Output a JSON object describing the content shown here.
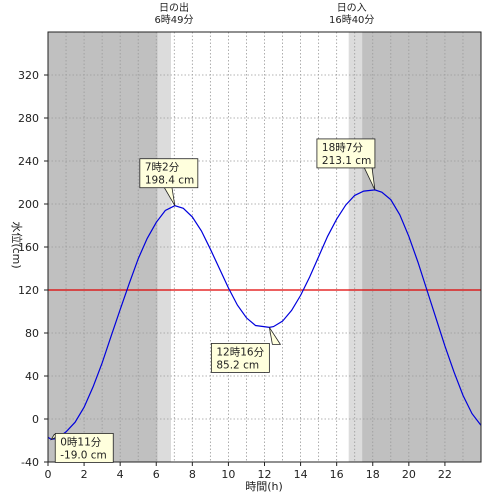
{
  "chart_data": {
    "type": "line",
    "title": "",
    "xlabel": "時間(h)",
    "ylabel": "水位(cm)",
    "xlim": [
      0,
      24
    ],
    "ylim": [
      -40,
      360
    ],
    "x_ticks": [
      0,
      2,
      4,
      6,
      8,
      10,
      12,
      14,
      16,
      18,
      20,
      22
    ],
    "y_ticks": [
      -40,
      0,
      40,
      80,
      120,
      160,
      200,
      240,
      280,
      320
    ],
    "grid": true,
    "legend": "none",
    "sun_events": [
      {
        "id": "sunrise",
        "label": "日の出",
        "time_label": "6時49分",
        "hour": 6.817
      },
      {
        "id": "sunset",
        "label": "日の入",
        "time_label": "16時40分",
        "hour": 16.667
      }
    ],
    "reference_line": {
      "value": 120,
      "color": "#e00000"
    },
    "series": [
      {
        "color": "#0000dd",
        "points": [
          [
            0.0,
            -17
          ],
          [
            0.18,
            -19
          ],
          [
            0.5,
            -18
          ],
          [
            1.0,
            -12
          ],
          [
            1.5,
            -3
          ],
          [
            2.0,
            11
          ],
          [
            2.5,
            30
          ],
          [
            3.0,
            52
          ],
          [
            3.5,
            77
          ],
          [
            4.0,
            102
          ],
          [
            4.5,
            126
          ],
          [
            5.0,
            149
          ],
          [
            5.5,
            168
          ],
          [
            6.0,
            183
          ],
          [
            6.5,
            194
          ],
          [
            7.03,
            198.4
          ],
          [
            7.5,
            196
          ],
          [
            8.0,
            188
          ],
          [
            8.5,
            175
          ],
          [
            9.0,
            158
          ],
          [
            9.5,
            140
          ],
          [
            10.0,
            122
          ],
          [
            10.5,
            106
          ],
          [
            11.0,
            94
          ],
          [
            11.5,
            87
          ],
          [
            12.27,
            85.2
          ],
          [
            12.5,
            86
          ],
          [
            13.0,
            91
          ],
          [
            13.5,
            101
          ],
          [
            14.0,
            115
          ],
          [
            14.5,
            132
          ],
          [
            15.0,
            151
          ],
          [
            15.5,
            170
          ],
          [
            16.0,
            186
          ],
          [
            16.5,
            199
          ],
          [
            17.0,
            208
          ],
          [
            17.5,
            212
          ],
          [
            18.12,
            213.1
          ],
          [
            18.5,
            211
          ],
          [
            19.0,
            204
          ],
          [
            19.5,
            190
          ],
          [
            20.0,
            170
          ],
          [
            20.5,
            146
          ],
          [
            21.0,
            120
          ],
          [
            21.5,
            94
          ],
          [
            22.0,
            68
          ],
          [
            22.5,
            44
          ],
          [
            23.0,
            22
          ],
          [
            23.5,
            5
          ],
          [
            24.0,
            -6
          ]
        ]
      }
    ],
    "annotations": [
      {
        "time_label": "0時11分",
        "value_label": "-19.0 cm",
        "x": 0.18,
        "y": -19.0
      },
      {
        "time_label": "7時2分",
        "value_label": "198.4 cm",
        "x": 7.03,
        "y": 198.4
      },
      {
        "time_label": "12時16分",
        "value_label": "85.2 cm",
        "x": 12.27,
        "y": 85.2
      },
      {
        "time_label": "18時7分",
        "value_label": "213.1 cm",
        "x": 18.12,
        "y": 213.1
      }
    ]
  },
  "colors": {
    "night": "#c0c0c0",
    "twilight": "#dcdcdc",
    "day": "#ffffff",
    "annotation_fill": "#ffffdd",
    "axis": "#222222"
  }
}
